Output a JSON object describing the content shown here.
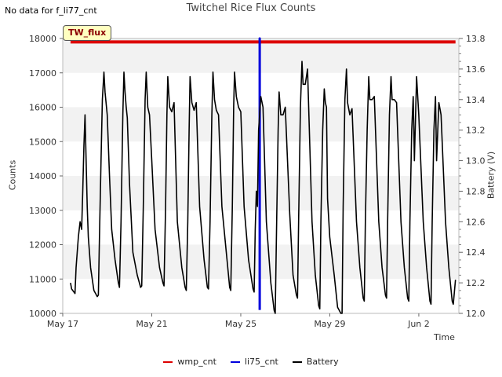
{
  "header": {
    "no_data_message": "No data for f_li77_cnt"
  },
  "site_label": "TW_flux",
  "colors": {
    "wmp_cnt": "#dd0000",
    "li75_cnt": "#0000dd",
    "battery": "#000000",
    "band": "#f2f2f2"
  },
  "chart_data": {
    "type": "line",
    "title": "Twitchel Rice Flux Counts",
    "xlabel": "Time",
    "ylabel": "Counts",
    "ylabel_right": "Battery (V)",
    "xlim_days": [
      0,
      17.8
    ],
    "ylim": [
      10000,
      18000
    ],
    "ylim_right": [
      12.0,
      13.8
    ],
    "x_ticks": [
      {
        "day": 0,
        "label": "May 17"
      },
      {
        "day": 4,
        "label": "May 21"
      },
      {
        "day": 8,
        "label": "May 25"
      },
      {
        "day": 12,
        "label": "May 29"
      },
      {
        "day": 16,
        "label": "Jun 2"
      }
    ],
    "y_ticks": [
      10000,
      11000,
      12000,
      13000,
      14000,
      15000,
      16000,
      17000,
      18000
    ],
    "y_ticks_right": [
      "12.0",
      "12.2",
      "12.4",
      "12.6",
      "12.8",
      "13.0",
      "13.2",
      "13.4",
      "13.6",
      "13.8"
    ],
    "legend": [
      "wmp_cnt",
      "li75_cnt",
      "Battery"
    ],
    "series": [
      {
        "name": "wmp_cnt",
        "axis": "left",
        "x": [
          0.35,
          17.65
        ],
        "y": [
          17900,
          17900
        ]
      },
      {
        "name": "li75_cnt",
        "axis": "left",
        "x": [
          8.85,
          8.85,
          8.85
        ],
        "y": [
          10100,
          18000,
          10100
        ]
      },
      {
        "name": "Battery",
        "axis": "right",
        "x": [
          0.35,
          0.4,
          0.55,
          0.6,
          0.7,
          0.78,
          0.85,
          0.9,
          0.95,
          1.0,
          1.05,
          1.1,
          1.15,
          1.25,
          1.4,
          1.55,
          1.6,
          1.65,
          1.72,
          1.78,
          1.85,
          1.9,
          2.0,
          2.1,
          2.2,
          2.35,
          2.5,
          2.55,
          2.62,
          2.7,
          2.75,
          2.8,
          2.85,
          2.9,
          3.0,
          3.15,
          3.35,
          3.5,
          3.55,
          3.62,
          3.7,
          3.75,
          3.82,
          3.9,
          4.0,
          4.15,
          4.35,
          4.5,
          4.55,
          4.62,
          4.68,
          4.72,
          4.8,
          4.9,
          5.0,
          5.15,
          5.35,
          5.5,
          5.55,
          5.62,
          5.68,
          5.72,
          5.8,
          5.9,
          6.0,
          6.15,
          6.35,
          6.5,
          6.55,
          6.62,
          6.7,
          6.75,
          6.82,
          6.9,
          7.0,
          7.15,
          7.35,
          7.5,
          7.55,
          7.62,
          7.68,
          7.72,
          7.8,
          7.9,
          8.0,
          8.15,
          8.35,
          8.55,
          8.6,
          8.65,
          8.7,
          8.75,
          8.8,
          8.9,
          9.0,
          9.15,
          9.35,
          9.5,
          9.55,
          9.6,
          9.68,
          9.72,
          9.8,
          9.9,
          10.0,
          10.2,
          10.35,
          10.5,
          10.55,
          10.6,
          10.68,
          10.75,
          10.8,
          10.9,
          11.0,
          11.2,
          11.35,
          11.5,
          11.55,
          11.6,
          11.68,
          11.75,
          11.8,
          11.85,
          11.9,
          12.0,
          12.2,
          12.35,
          12.5,
          12.55,
          12.6,
          12.68,
          12.75,
          12.8,
          12.9,
          13.0,
          13.2,
          13.35,
          13.5,
          13.55,
          13.6,
          13.68,
          13.75,
          13.8,
          13.9,
          14.0,
          14.2,
          14.35,
          14.5,
          14.55,
          14.6,
          14.68,
          14.75,
          14.8,
          14.9,
          15.0,
          15.2,
          15.35,
          15.5,
          15.55,
          15.6,
          15.68,
          15.75,
          15.8,
          15.9,
          16.0,
          16.2,
          16.35,
          16.5,
          16.55,
          16.6,
          16.68,
          16.75,
          16.8,
          16.9,
          17.0,
          17.2,
          17.35,
          17.5,
          17.55,
          17.65
        ],
        "y": [
          12.2,
          12.16,
          12.13,
          12.3,
          12.5,
          12.6,
          12.55,
          12.8,
          13.1,
          13.3,
          13.0,
          12.7,
          12.5,
          12.3,
          12.15,
          12.11,
          12.12,
          12.5,
          13.0,
          13.4,
          13.58,
          13.45,
          13.3,
          12.9,
          12.55,
          12.35,
          12.2,
          12.17,
          12.6,
          13.3,
          13.58,
          13.45,
          13.35,
          13.28,
          12.85,
          12.4,
          12.25,
          12.17,
          12.18,
          12.7,
          13.4,
          13.58,
          13.35,
          13.3,
          13.0,
          12.55,
          12.3,
          12.2,
          12.18,
          12.7,
          13.3,
          13.55,
          13.35,
          13.32,
          13.38,
          12.6,
          12.3,
          12.17,
          12.15,
          12.6,
          13.2,
          13.55,
          13.38,
          13.33,
          13.38,
          12.7,
          12.35,
          12.17,
          12.16,
          12.6,
          13.3,
          13.58,
          13.4,
          13.33,
          13.3,
          12.7,
          12.4,
          12.17,
          12.15,
          12.7,
          13.35,
          13.58,
          13.42,
          13.35,
          13.32,
          12.7,
          12.35,
          12.16,
          12.14,
          12.55,
          12.8,
          12.7,
          13.2,
          13.42,
          13.35,
          12.6,
          12.2,
          12.02,
          12.0,
          12.5,
          13.2,
          13.45,
          13.3,
          13.3,
          13.35,
          12.65,
          12.25,
          12.12,
          12.1,
          12.6,
          13.35,
          13.65,
          13.5,
          13.5,
          13.6,
          12.6,
          12.25,
          12.05,
          12.03,
          12.6,
          13.2,
          13.47,
          13.38,
          13.35,
          12.75,
          12.5,
          12.25,
          12.04,
          12.0,
          12.0,
          12.7,
          13.4,
          13.6,
          13.38,
          13.3,
          13.34,
          12.6,
          12.3,
          12.1,
          12.08,
          12.6,
          13.2,
          13.55,
          13.4,
          13.4,
          13.42,
          12.6,
          12.3,
          12.12,
          12.1,
          12.6,
          13.3,
          13.55,
          13.4,
          13.4,
          13.38,
          12.6,
          12.3,
          12.1,
          12.08,
          12.6,
          13.2,
          13.42,
          13.0,
          13.55,
          13.3,
          12.6,
          12.3,
          12.08,
          12.06,
          12.6,
          13.2,
          13.42,
          13.0,
          13.38,
          13.3,
          12.6,
          12.3,
          12.08,
          12.06,
          12.22
        ]
      }
    ]
  }
}
